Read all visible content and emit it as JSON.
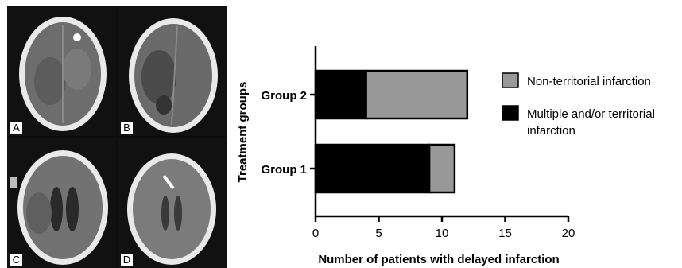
{
  "figure": {
    "panel_labels": [
      "A",
      "B",
      "C",
      "D"
    ]
  },
  "chart_data": {
    "type": "bar",
    "orientation": "horizontal",
    "stacked": true,
    "categories": [
      "Group 1",
      "Group 2"
    ],
    "series": [
      {
        "name": "Multiple and/or territorial infarction",
        "values": [
          9,
          4
        ],
        "color": "#000000"
      },
      {
        "name": "Non-territorial infarction",
        "values": [
          2,
          8
        ],
        "color": "#999999"
      }
    ],
    "xlabel": "Number of patients with delayed infarction",
    "ylabel": "Treatment groups",
    "xlim": [
      0,
      20
    ],
    "xticks": [
      "0",
      "5",
      "10",
      "15",
      "20"
    ],
    "grid": false,
    "legend_position": "right",
    "legend_entries": [
      {
        "lines": [
          "Non-territorial infarction"
        ],
        "color": "#999999"
      },
      {
        "lines": [
          "Multiple and/or territorial",
          "infarction"
        ],
        "color": "#000000"
      }
    ]
  }
}
